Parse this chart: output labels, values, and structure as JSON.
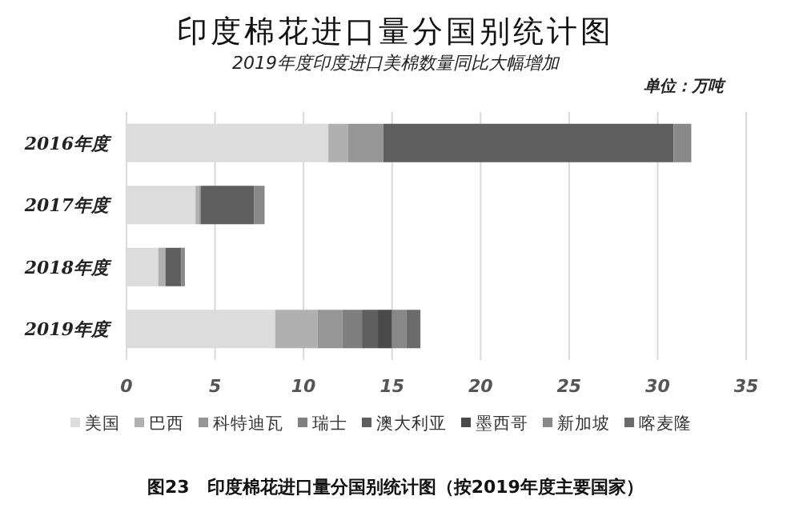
{
  "chart_data": {
    "type": "bar",
    "orientation": "horizontal",
    "stacked": true,
    "title": "印度棉花进口量分国别统计图",
    "subtitle": "2019年度印度进口美棉数量同比大幅增加",
    "annotations": [
      "单位：万吨",
      "图23　印度棉花进口量分国别统计图（按2019年度主要国家）"
    ],
    "categories": [
      "2016年度",
      "2017年度",
      "2018年度",
      "2019年度"
    ],
    "series": [
      {
        "name": "美国",
        "color": "#dcdcdc",
        "values": [
          11.4,
          3.9,
          1.8,
          8.4
        ]
      },
      {
        "name": "巴西",
        "color": "#b0b0b0",
        "values": [
          1.1,
          0.2,
          0.4,
          2.4
        ]
      },
      {
        "name": "科特迪瓦",
        "color": "#969696",
        "values": [
          2.0,
          0.1,
          null,
          1.4
        ]
      },
      {
        "name": "瑞士",
        "color": "#7f7f7f",
        "values": [
          null,
          null,
          null,
          1.1
        ]
      },
      {
        "name": "澳大利亚",
        "color": "#5f5f5f",
        "values": [
          16.4,
          3.0,
          0.9,
          0.9
        ]
      },
      {
        "name": "墨西哥",
        "color": "#4a4a4a",
        "values": [
          null,
          null,
          null,
          0.8
        ]
      },
      {
        "name": "新加坡",
        "color": "#888888",
        "values": [
          1.0,
          0.6,
          0.2,
          0.8
        ]
      },
      {
        "name": "喀麦隆",
        "color": "#6b6b6b",
        "values": [
          null,
          null,
          null,
          0.8
        ]
      }
    ],
    "xlim": [
      0,
      35
    ],
    "xticks": [
      0,
      5,
      10,
      15,
      20,
      25,
      30,
      35
    ],
    "grid": "x",
    "legend": "bottom"
  }
}
